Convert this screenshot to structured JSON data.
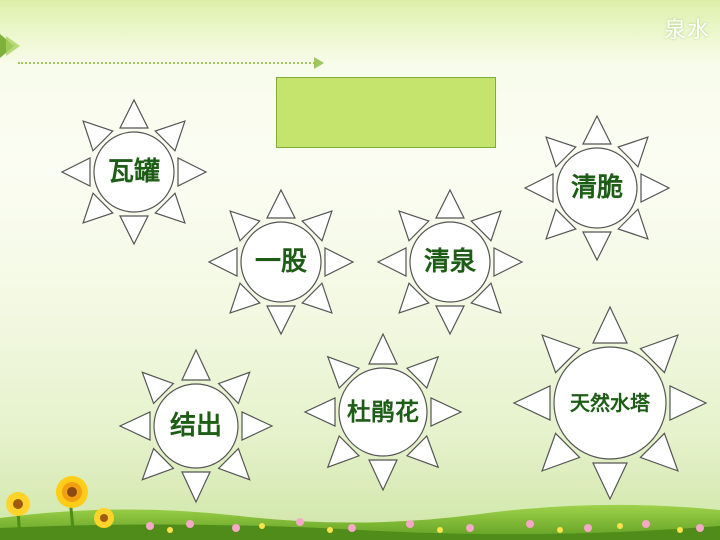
{
  "header": {
    "title": "泉水"
  },
  "suns": [
    {
      "id": "wa-guan",
      "label": "瓦罐"
    },
    {
      "id": "yi-gu",
      "label": "一股"
    },
    {
      "id": "qing-quan",
      "label": "清泉"
    },
    {
      "id": "qing-cui",
      "label": "清脆"
    },
    {
      "id": "jie-chu",
      "label": "结出"
    },
    {
      "id": "du-juan-hua",
      "label": "杜鹃花"
    },
    {
      "id": "tian-ran-shui-ta",
      "label": "天然水塔"
    }
  ],
  "colors": {
    "label_text": "#1e5d16",
    "answer_box_fill": "#c5e46e",
    "sun_stroke": "#555555"
  }
}
